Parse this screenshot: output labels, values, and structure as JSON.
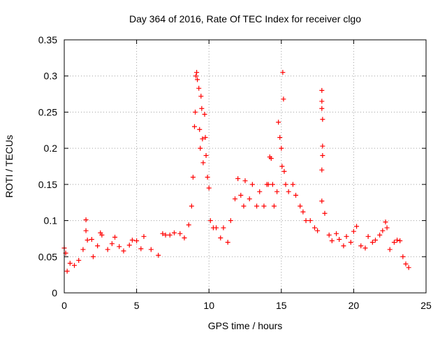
{
  "chart_data": {
    "type": "scatter",
    "title": "Day 364 of 2016, Rate Of TEC Index for receiver clgo",
    "xlabel": "GPS time / hours",
    "ylabel": "ROTI / TECUs",
    "xlim": [
      0,
      25
    ],
    "ylim": [
      0,
      0.35
    ],
    "x_ticks": [
      0,
      5,
      10,
      15,
      20,
      25
    ],
    "y_ticks": [
      0,
      0.05,
      0.1,
      0.15,
      0.2,
      0.25,
      0.3,
      0.35
    ],
    "x_tick_labels": [
      "0",
      "5",
      "10",
      "15",
      "20",
      "25"
    ],
    "y_tick_labels": [
      "0",
      "0.05",
      "0.1",
      "0.15",
      "0.2",
      "0.25",
      "0.3",
      "0.35"
    ],
    "grid": true,
    "marker": "plus",
    "color": "#ff0000",
    "series": [
      {
        "points": [
          [
            0.0,
            0.062
          ],
          [
            0.1,
            0.055
          ],
          [
            0.2,
            0.03
          ],
          [
            0.4,
            0.041
          ],
          [
            0.7,
            0.038
          ],
          [
            1.0,
            0.045
          ],
          [
            1.3,
            0.06
          ],
          [
            1.5,
            0.101
          ],
          [
            1.5,
            0.086
          ],
          [
            1.6,
            0.073
          ],
          [
            1.9,
            0.074
          ],
          [
            2.0,
            0.05
          ],
          [
            2.3,
            0.065
          ],
          [
            2.5,
            0.083
          ],
          [
            2.6,
            0.08
          ],
          [
            3.0,
            0.06
          ],
          [
            3.3,
            0.068
          ],
          [
            3.5,
            0.077
          ],
          [
            3.8,
            0.064
          ],
          [
            4.1,
            0.058
          ],
          [
            4.5,
            0.066
          ],
          [
            4.7,
            0.073
          ],
          [
            5.0,
            0.072
          ],
          [
            5.3,
            0.061
          ],
          [
            5.5,
            0.078
          ],
          [
            6.0,
            0.06
          ],
          [
            6.5,
            0.052
          ],
          [
            6.8,
            0.082
          ],
          [
            7.0,
            0.08
          ],
          [
            7.3,
            0.08
          ],
          [
            7.6,
            0.083
          ],
          [
            8.0,
            0.082
          ],
          [
            8.3,
            0.076
          ],
          [
            8.6,
            0.094
          ],
          [
            8.8,
            0.12
          ],
          [
            8.9,
            0.16
          ],
          [
            9.0,
            0.23
          ],
          [
            9.05,
            0.25
          ],
          [
            9.1,
            0.3
          ],
          [
            9.15,
            0.305
          ],
          [
            9.2,
            0.295
          ],
          [
            9.3,
            0.283
          ],
          [
            9.35,
            0.226
          ],
          [
            9.4,
            0.2
          ],
          [
            9.45,
            0.272
          ],
          [
            9.5,
            0.255
          ],
          [
            9.55,
            0.213
          ],
          [
            9.6,
            0.18
          ],
          [
            9.7,
            0.247
          ],
          [
            9.75,
            0.215
          ],
          [
            9.8,
            0.19
          ],
          [
            9.9,
            0.16
          ],
          [
            10.0,
            0.145
          ],
          [
            10.1,
            0.1
          ],
          [
            10.3,
            0.09
          ],
          [
            10.5,
            0.09
          ],
          [
            10.8,
            0.076
          ],
          [
            11.0,
            0.09
          ],
          [
            11.3,
            0.07
          ],
          [
            11.5,
            0.1
          ],
          [
            11.8,
            0.13
          ],
          [
            12.0,
            0.158
          ],
          [
            12.2,
            0.135
          ],
          [
            12.4,
            0.12
          ],
          [
            12.5,
            0.155
          ],
          [
            12.8,
            0.13
          ],
          [
            13.0,
            0.15
          ],
          [
            13.3,
            0.12
          ],
          [
            13.5,
            0.14
          ],
          [
            13.8,
            0.12
          ],
          [
            14.0,
            0.15
          ],
          [
            14.1,
            0.15
          ],
          [
            14.2,
            0.188
          ],
          [
            14.3,
            0.186
          ],
          [
            14.4,
            0.15
          ],
          [
            14.5,
            0.12
          ],
          [
            14.7,
            0.14
          ],
          [
            14.8,
            0.236
          ],
          [
            14.9,
            0.215
          ],
          [
            15.0,
            0.2
          ],
          [
            15.05,
            0.175
          ],
          [
            15.1,
            0.305
          ],
          [
            15.15,
            0.268
          ],
          [
            15.2,
            0.168
          ],
          [
            15.3,
            0.15
          ],
          [
            15.5,
            0.14
          ],
          [
            15.8,
            0.15
          ],
          [
            16.0,
            0.135
          ],
          [
            16.3,
            0.12
          ],
          [
            16.5,
            0.112
          ],
          [
            16.7,
            0.1
          ],
          [
            17.0,
            0.1
          ],
          [
            17.3,
            0.09
          ],
          [
            17.5,
            0.086
          ],
          [
            17.8,
            0.28
          ],
          [
            17.8,
            0.265
          ],
          [
            17.8,
            0.255
          ],
          [
            17.85,
            0.24
          ],
          [
            17.85,
            0.203
          ],
          [
            17.85,
            0.19
          ],
          [
            17.8,
            0.17
          ],
          [
            17.8,
            0.127
          ],
          [
            18.0,
            0.11
          ],
          [
            18.3,
            0.08
          ],
          [
            18.5,
            0.072
          ],
          [
            18.8,
            0.082
          ],
          [
            19.0,
            0.074
          ],
          [
            19.3,
            0.065
          ],
          [
            19.5,
            0.078
          ],
          [
            19.8,
            0.07
          ],
          [
            20.0,
            0.085
          ],
          [
            20.2,
            0.092
          ],
          [
            20.5,
            0.065
          ],
          [
            20.8,
            0.062
          ],
          [
            21.0,
            0.078
          ],
          [
            21.3,
            0.07
          ],
          [
            21.5,
            0.073
          ],
          [
            21.8,
            0.08
          ],
          [
            22.0,
            0.086
          ],
          [
            22.2,
            0.098
          ],
          [
            22.3,
            0.09
          ],
          [
            22.5,
            0.06
          ],
          [
            22.8,
            0.07
          ],
          [
            23.0,
            0.073
          ],
          [
            23.2,
            0.072
          ],
          [
            23.4,
            0.05
          ],
          [
            23.6,
            0.04
          ],
          [
            23.8,
            0.035
          ]
        ]
      }
    ]
  }
}
